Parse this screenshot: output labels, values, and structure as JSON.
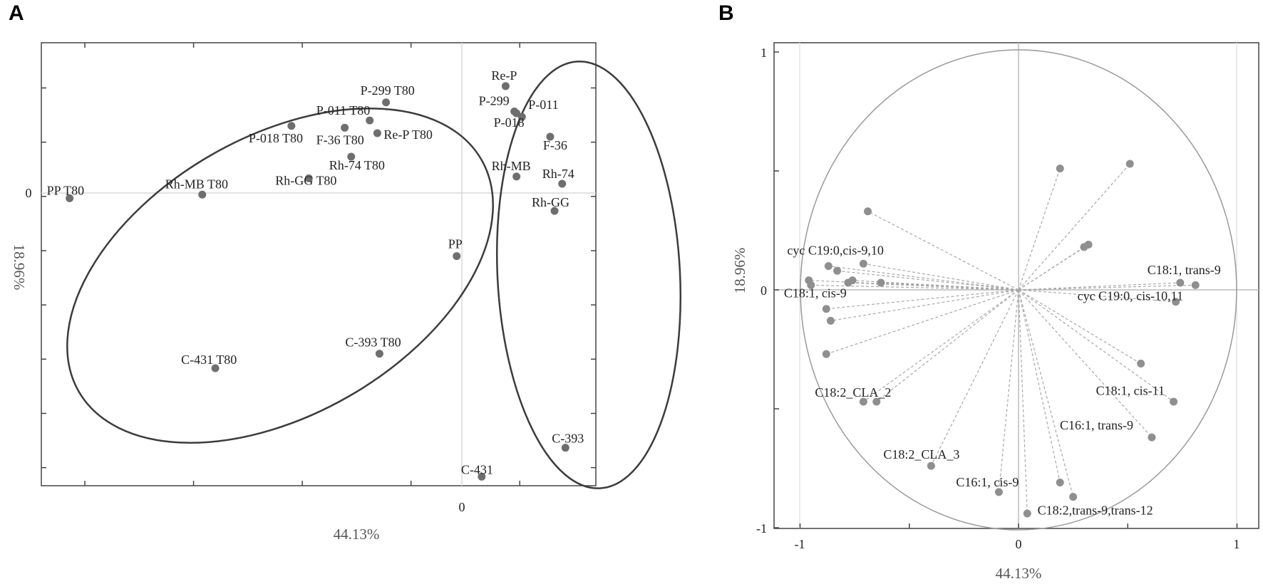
{
  "panel_labels": {
    "a": "A",
    "b": "B"
  },
  "chart_data": [
    {
      "type": "scatter",
      "title": "",
      "xlabel": "44.13%",
      "ylabel": "18.96%",
      "x_tick_label": "0",
      "y_tick_label": "0",
      "xlim": [
        -3.4,
        1.7
      ],
      "ylim": [
        -1.6,
        0.85
      ],
      "points": [
        {
          "label": "PP T80",
          "x": -3.14,
          "y": -0.01
        },
        {
          "label": "Rh-MB T80",
          "x": -1.92,
          "y": 0.01
        },
        {
          "label": "Rh-GG T80",
          "x": -0.94,
          "y": 0.1
        },
        {
          "label": "P-018 T80",
          "x": -1.1,
          "y": 0.39
        },
        {
          "label": "F-36 T80",
          "x": -0.61,
          "y": 0.38
        },
        {
          "label": "P-011 T80",
          "x": -0.38,
          "y": 0.42
        },
        {
          "label": "P-299 T80",
          "x": -0.23,
          "y": 0.52
        },
        {
          "label": "Re-P T80",
          "x": -0.31,
          "y": 0.35
        },
        {
          "label": "Rh-74 T80",
          "x": -0.55,
          "y": 0.22
        },
        {
          "label": "C-431 T80",
          "x": -1.8,
          "y": -0.95
        },
        {
          "label": "C-393 T80",
          "x": -0.29,
          "y": -0.87
        },
        {
          "label": "Re-P",
          "x": 0.87,
          "y": 0.61
        },
        {
          "label": "P-299",
          "x": 0.95,
          "y": 0.47
        },
        {
          "label": "P-011",
          "x": 1.02,
          "y": 0.44
        },
        {
          "label": "P-018",
          "x": 0.97,
          "y": 0.46
        },
        {
          "label": "F-36",
          "x": 1.28,
          "y": 0.33
        },
        {
          "label": "Rh-MB",
          "x": 0.97,
          "y": 0.11
        },
        {
          "label": "Rh-74",
          "x": 1.39,
          "y": 0.07
        },
        {
          "label": "Rh-GG",
          "x": 1.32,
          "y": -0.08
        },
        {
          "label": "PP",
          "x": 0.42,
          "y": -0.33
        },
        {
          "label": "C-393",
          "x": 1.42,
          "y": -1.39
        },
        {
          "label": "C-431",
          "x": 0.65,
          "y": -1.55
        }
      ],
      "groups": [
        {
          "name": "T80 samples",
          "members": [
            "PP T80",
            "Rh-MB T80",
            "Rh-GG T80",
            "P-018 T80",
            "F-36 T80",
            "P-011 T80",
            "P-299 T80",
            "Re-P T80",
            "Rh-74 T80",
            "C-431 T80",
            "C-393 T80"
          ]
        },
        {
          "name": "Untreated samples",
          "members": [
            "Re-P",
            "P-299",
            "P-011",
            "P-018",
            "F-36",
            "Rh-MB",
            "Rh-74",
            "Rh-GG",
            "PP",
            "C-393",
            "C-431"
          ]
        }
      ]
    },
    {
      "type": "scatter",
      "subtype": "pca-loadings",
      "title": "",
      "xlabel": "44.13%",
      "ylabel": "18.96%",
      "xlim": [
        -1.1,
        1.1
      ],
      "ylim": [
        -1,
        1
      ],
      "x_ticks": [
        "-1",
        "0",
        "1"
      ],
      "y_ticks": [
        "1",
        "0",
        "-1"
      ],
      "unit_circle": true,
      "loadings": [
        {
          "x": 0.19,
          "y": 0.51,
          "label": ""
        },
        {
          "x": 0.51,
          "y": 0.53,
          "label": ""
        },
        {
          "x": -0.69,
          "y": 0.33,
          "label": ""
        },
        {
          "x": 0.3,
          "y": 0.18,
          "label": ""
        },
        {
          "x": 0.32,
          "y": 0.19,
          "label": ""
        },
        {
          "x": -0.87,
          "y": 0.1,
          "label": "cyc C19:0,cis-9,10"
        },
        {
          "x": -0.83,
          "y": 0.08,
          "label": ""
        },
        {
          "x": -0.71,
          "y": 0.11,
          "label": ""
        },
        {
          "x": -0.96,
          "y": 0.04,
          "label": ""
        },
        {
          "x": -0.95,
          "y": 0.02,
          "label": "C18:1, cis-9"
        },
        {
          "x": -0.78,
          "y": 0.03,
          "label": ""
        },
        {
          "x": -0.76,
          "y": 0.04,
          "label": ""
        },
        {
          "x": -0.63,
          "y": 0.03,
          "label": ""
        },
        {
          "x": 0.74,
          "y": 0.03,
          "label": "C18:1, trans-9"
        },
        {
          "x": 0.81,
          "y": 0.02,
          "label": ""
        },
        {
          "x": 0.72,
          "y": -0.05,
          "label": "cyc C19:0, cis-10,11"
        },
        {
          "x": -0.88,
          "y": -0.08,
          "label": ""
        },
        {
          "x": -0.86,
          "y": -0.13,
          "label": ""
        },
        {
          "x": -0.88,
          "y": -0.27,
          "label": ""
        },
        {
          "x": 0.56,
          "y": -0.31,
          "label": "C18:1, cis-11"
        },
        {
          "x": 0.71,
          "y": -0.47,
          "label": ""
        },
        {
          "x": -0.71,
          "y": -0.47,
          "label": "C18:2_CLA_2"
        },
        {
          "x": -0.65,
          "y": -0.47,
          "label": ""
        },
        {
          "x": 0.61,
          "y": -0.62,
          "label": "C16:1, trans-9"
        },
        {
          "x": -0.4,
          "y": -0.74,
          "label": "C18:2_CLA_3"
        },
        {
          "x": -0.09,
          "y": -0.85,
          "label": "C16:1, cis-9"
        },
        {
          "x": 0.19,
          "y": -0.81,
          "label": ""
        },
        {
          "x": 0.25,
          "y": -0.87,
          "label": "C18:2,trans-9,trans-12"
        },
        {
          "x": 0.04,
          "y": -0.94,
          "label": ""
        }
      ]
    }
  ]
}
